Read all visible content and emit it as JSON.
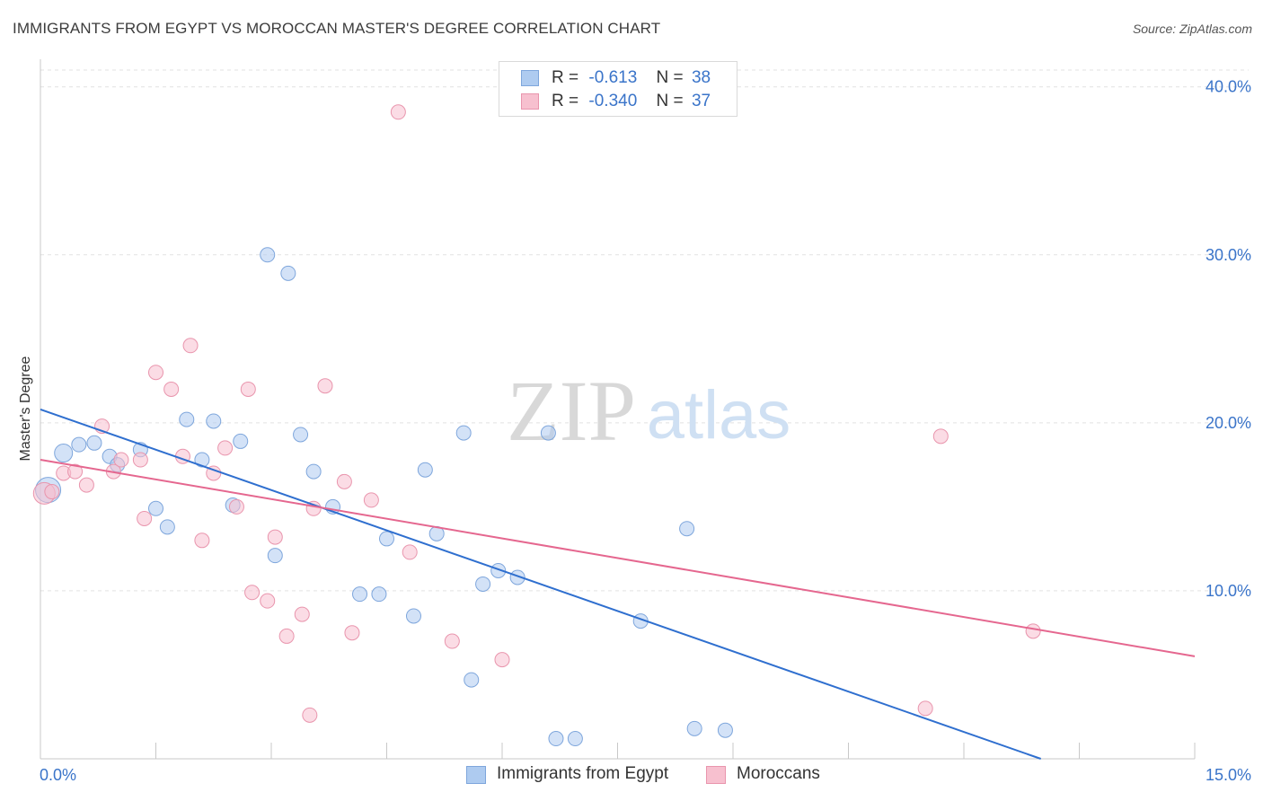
{
  "header": {
    "title": "IMMIGRANTS FROM EGYPT VS MOROCCAN MASTER'S DEGREE CORRELATION CHART",
    "source": "Source: ZipAtlas.com"
  },
  "watermark": {
    "zip": "ZIP",
    "atlas": "atlas"
  },
  "legend": {
    "rows": [
      {
        "r_label": "R =",
        "r_value": "-0.613",
        "n_label": "N =",
        "n_value": "38",
        "color": "#aecbf0",
        "border": "#7ea6dc"
      },
      {
        "r_label": "R =",
        "r_value": "-0.340",
        "n_label": "N =",
        "n_value": "37",
        "color": "#f7c0cf",
        "border": "#e995ad"
      }
    ]
  },
  "chart_data": {
    "type": "scatter",
    "title": "IMMIGRANTS FROM EGYPT VS MOROCCAN MASTER'S DEGREE CORRELATION CHART",
    "xlabel": "",
    "ylabel": "Master's Degree",
    "xlim": [
      0,
      15
    ],
    "ylim": [
      0,
      41
    ],
    "x_tick_labels": [
      "0.0%",
      "15.0%"
    ],
    "y_tick_values": [
      10,
      20,
      30,
      40
    ],
    "y_tick_labels": [
      "10.0%",
      "20.0%",
      "30.0%",
      "40.0%"
    ],
    "grid": "horizontal dashed",
    "legend_position": "top-center",
    "series": [
      {
        "name": "Immigrants from Egypt",
        "color": "#aecbf0",
        "border": "#7ea6dc",
        "line_color": "#2f6fcf",
        "trend": {
          "x0": 0.0,
          "y0": 20.8,
          "x1": 13.0,
          "y1": 0.0
        },
        "points": [
          [
            0.1,
            16.0
          ],
          [
            0.3,
            18.2
          ],
          [
            0.5,
            18.7
          ],
          [
            0.7,
            18.8
          ],
          [
            0.9,
            18.0
          ],
          [
            1.0,
            17.5
          ],
          [
            1.3,
            18.4
          ],
          [
            1.5,
            14.9
          ],
          [
            1.65,
            13.8
          ],
          [
            1.9,
            20.2
          ],
          [
            2.1,
            17.8
          ],
          [
            2.25,
            20.1
          ],
          [
            2.5,
            15.1
          ],
          [
            2.6,
            18.9
          ],
          [
            2.95,
            30.0
          ],
          [
            3.05,
            12.1
          ],
          [
            3.22,
            28.9
          ],
          [
            3.38,
            19.3
          ],
          [
            3.55,
            17.1
          ],
          [
            3.8,
            15.0
          ],
          [
            4.15,
            9.8
          ],
          [
            4.4,
            9.8
          ],
          [
            4.5,
            13.1
          ],
          [
            4.85,
            8.5
          ],
          [
            5.0,
            17.2
          ],
          [
            5.15,
            13.4
          ],
          [
            5.5,
            19.4
          ],
          [
            5.6,
            4.7
          ],
          [
            5.75,
            10.4
          ],
          [
            5.95,
            11.2
          ],
          [
            6.2,
            10.8
          ],
          [
            6.6,
            19.4
          ],
          [
            6.7,
            1.2
          ],
          [
            6.95,
            1.2
          ],
          [
            7.8,
            8.2
          ],
          [
            8.4,
            13.7
          ],
          [
            8.5,
            1.8
          ],
          [
            8.9,
            1.7
          ]
        ]
      },
      {
        "name": "Moroccans",
        "color": "#f7c0cf",
        "border": "#e995ad",
        "line_color": "#e5678f",
        "trend": {
          "x0": 0.0,
          "y0": 17.8,
          "x1": 15.0,
          "y1": 6.1
        },
        "points": [
          [
            0.05,
            15.8
          ],
          [
            0.3,
            17.0
          ],
          [
            0.45,
            17.1
          ],
          [
            0.6,
            16.3
          ],
          [
            0.8,
            19.8
          ],
          [
            0.95,
            17.1
          ],
          [
            1.05,
            17.8
          ],
          [
            1.3,
            17.8
          ],
          [
            1.35,
            14.3
          ],
          [
            1.5,
            23.0
          ],
          [
            1.7,
            22.0
          ],
          [
            1.85,
            18.0
          ],
          [
            1.95,
            24.6
          ],
          [
            2.1,
            13.0
          ],
          [
            2.25,
            17.0
          ],
          [
            2.4,
            18.5
          ],
          [
            2.55,
            15.0
          ],
          [
            2.7,
            22.0
          ],
          [
            2.75,
            9.9
          ],
          [
            2.95,
            9.4
          ],
          [
            3.05,
            13.2
          ],
          [
            3.2,
            7.3
          ],
          [
            3.4,
            8.6
          ],
          [
            3.5,
            2.6
          ],
          [
            3.55,
            14.9
          ],
          [
            3.7,
            22.2
          ],
          [
            3.95,
            16.5
          ],
          [
            4.05,
            7.5
          ],
          [
            4.3,
            15.4
          ],
          [
            4.65,
            38.5
          ],
          [
            4.8,
            12.3
          ],
          [
            5.35,
            7.0
          ],
          [
            6.0,
            5.9
          ],
          [
            11.5,
            3.0
          ],
          [
            11.7,
            19.2
          ],
          [
            12.9,
            7.6
          ],
          [
            0.15,
            15.9
          ]
        ]
      }
    ]
  },
  "bottom_legend": [
    {
      "label": "Immigrants from Egypt"
    },
    {
      "label": "Moroccans"
    }
  ]
}
